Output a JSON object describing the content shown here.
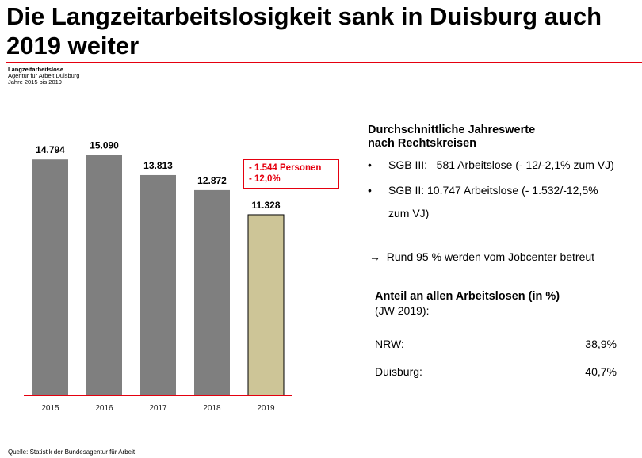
{
  "header": {
    "title": "Die Langzeitarbeitslosigkeit sank in Duisburg auch 2019 weiter"
  },
  "meta": {
    "line1": "Langzeitarbeitslose",
    "line2": "Agentur für Arbeit Duisburg",
    "line3": "Jahre 2015 bis 2019"
  },
  "colors": {
    "accent_red": "#e5000f",
    "bar_gray": "#7f7f7f",
    "bar_highlight": "#cdc597"
  },
  "chart_data": {
    "type": "bar",
    "title": "",
    "xlabel": "",
    "ylabel": "",
    "categories": [
      "2015",
      "2016",
      "2017",
      "2018",
      "2019"
    ],
    "values": [
      14794,
      15090,
      13813,
      12872,
      11328
    ],
    "value_labels": [
      "14.794",
      "15.090",
      "13.813",
      "12.872",
      "11.328"
    ],
    "highlighted_category": "2019",
    "ylim": [
      0,
      15500
    ],
    "grid": false,
    "legend": "none"
  },
  "change": {
    "line1": "- 1.544 Personen",
    "line2": "- 12,0%"
  },
  "right": {
    "heading": "Durchschnittliche Jahreswerte\nnach Rechtskreisen",
    "bullet_char": "•",
    "bullet1": "SGB III:   581 Arbeitslose (- 12/-2,1% zum VJ)",
    "bullet2_line1": "SGB II: 10.747 Arbeitslose (- 1.532/-12,5%",
    "bullet2_line2": "zum VJ)",
    "arrow_note": "→  Rund 95 % werden vom Jobcenter betreut",
    "share_heading": "Anteil an allen Arbeitslosen (in %)",
    "share_sub": "(JW 2019):",
    "rows": [
      {
        "label": "NRW:",
        "value": "38,9%"
      },
      {
        "label": "Duisburg:",
        "value": "40,7%"
      }
    ]
  },
  "source": "Quelle: Statistik der Bundesagentur für Arbeit"
}
